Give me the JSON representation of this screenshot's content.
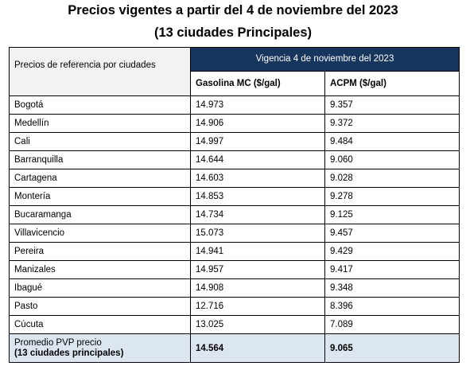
{
  "title": {
    "line1": "Precios vigentes a partir del 4 de noviembre del 2023",
    "line2": "(13 ciudades Principales)"
  },
  "table": {
    "row_header": "Precios de referencia por ciudades",
    "vigencia": "Vigencia 4 de noviembre del 2023",
    "col_gasolina": "Gasolina MC ($/gal)",
    "col_acpm": "ACPM ($/gal)",
    "rows": [
      {
        "city": "Bogotá",
        "gasolina": "14.973",
        "acpm": "9.357"
      },
      {
        "city": "Medellín",
        "gasolina": "14.906",
        "acpm": "9.372"
      },
      {
        "city": "Cali",
        "gasolina": "14.997",
        "acpm": "9.484"
      },
      {
        "city": "Barranquilla",
        "gasolina": "14.644",
        "acpm": "9.060"
      },
      {
        "city": "Cartagena",
        "gasolina": "14.603",
        "acpm": "9.028"
      },
      {
        "city": "Montería",
        "gasolina": "14.853",
        "acpm": "9.278"
      },
      {
        "city": "Bucaramanga",
        "gasolina": "14.734",
        "acpm": "9.125"
      },
      {
        "city": "Villavicencio",
        "gasolina": "15.073",
        "acpm": "9.457"
      },
      {
        "city": "Pereira",
        "gasolina": "14.941",
        "acpm": "9.429"
      },
      {
        "city": "Manizales",
        "gasolina": "14.957",
        "acpm": "9.417"
      },
      {
        "city": "Ibagué",
        "gasolina": "14.908",
        "acpm": "9.348"
      },
      {
        "city": "Pasto",
        "gasolina": "12.716",
        "acpm": "8.396"
      },
      {
        "city": "Cúcuta",
        "gasolina": "13.025",
        "acpm": "7.089"
      }
    ],
    "average": {
      "label_line1": "Promedio PVP precio",
      "label_line2": "(13 ciudades principales)",
      "gasolina": "14.564",
      "acpm": "9.065"
    }
  }
}
